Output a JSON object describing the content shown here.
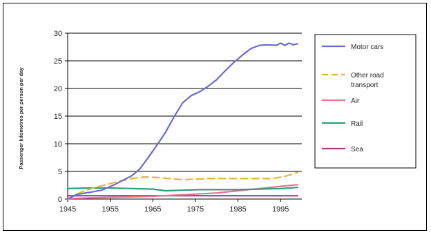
{
  "chart_data": {
    "type": "line",
    "title": "",
    "xlabel": "",
    "ylabel": "Passenger kilometres per person per day",
    "xlim": [
      1945,
      2000
    ],
    "ylim": [
      0,
      30
    ],
    "x_ticks": [
      "1945",
      "1955",
      "1965",
      "1975",
      "1985",
      "1995"
    ],
    "y_ticks": [
      "0",
      "5",
      "10",
      "15",
      "20",
      "25",
      "30"
    ],
    "grid": "horizontal",
    "legend_position": "right",
    "series": [
      {
        "name": "Motor cars",
        "color": "#6b6bc8",
        "dash": "solid",
        "points": [
          [
            1945,
            0.0
          ],
          [
            1947,
            0.8
          ],
          [
            1950,
            1.2
          ],
          [
            1953,
            1.6
          ],
          [
            1956,
            2.6
          ],
          [
            1958,
            3.4
          ],
          [
            1960,
            4.2
          ],
          [
            1962,
            5.5
          ],
          [
            1964,
            7.6
          ],
          [
            1966,
            9.8
          ],
          [
            1968,
            12.1
          ],
          [
            1970,
            14.9
          ],
          [
            1972,
            17.4
          ],
          [
            1974,
            18.7
          ],
          [
            1976,
            19.4
          ],
          [
            1978,
            20.4
          ],
          [
            1980,
            21.6
          ],
          [
            1982,
            23.2
          ],
          [
            1984,
            24.7
          ],
          [
            1986,
            26.0
          ],
          [
            1988,
            27.2
          ],
          [
            1990,
            27.8
          ],
          [
            1992,
            27.9
          ],
          [
            1994,
            27.8
          ],
          [
            1995,
            28.2
          ],
          [
            1996,
            27.8
          ],
          [
            1997,
            28.2
          ],
          [
            1998,
            27.9
          ],
          [
            1999,
            28.1
          ]
        ]
      },
      {
        "name": "Other road transport",
        "color": "#e6b43c",
        "dash": "dashed",
        "points": [
          [
            1945,
            0.0
          ],
          [
            1948,
            1.2
          ],
          [
            1951,
            2.0
          ],
          [
            1954,
            2.6
          ],
          [
            1957,
            3.2
          ],
          [
            1960,
            3.7
          ],
          [
            1963,
            4.0
          ],
          [
            1966,
            3.9
          ],
          [
            1969,
            3.7
          ],
          [
            1972,
            3.5
          ],
          [
            1975,
            3.6
          ],
          [
            1978,
            3.7
          ],
          [
            1981,
            3.7
          ],
          [
            1984,
            3.7
          ],
          [
            1987,
            3.7
          ],
          [
            1990,
            3.7
          ],
          [
            1993,
            3.7
          ],
          [
            1996,
            4.1
          ],
          [
            1999,
            4.8
          ]
        ]
      },
      {
        "name": "Air",
        "color": "#e8738f",
        "dash": "solid",
        "points": [
          [
            1945,
            0.1
          ],
          [
            1950,
            0.2
          ],
          [
            1955,
            0.3
          ],
          [
            1960,
            0.4
          ],
          [
            1965,
            0.5
          ],
          [
            1970,
            0.7
          ],
          [
            1975,
            0.9
          ],
          [
            1980,
            1.1
          ],
          [
            1985,
            1.5
          ],
          [
            1990,
            1.9
          ],
          [
            1995,
            2.3
          ],
          [
            1999,
            2.6
          ]
        ]
      },
      {
        "name": "Rail",
        "color": "#2e9e7a",
        "dash": "solid",
        "points": [
          [
            1945,
            1.9
          ],
          [
            1950,
            2.0
          ],
          [
            1955,
            2.0
          ],
          [
            1960,
            1.9
          ],
          [
            1965,
            1.8
          ],
          [
            1968,
            1.5
          ],
          [
            1972,
            1.6
          ],
          [
            1976,
            1.7
          ],
          [
            1980,
            1.7
          ],
          [
            1985,
            1.7
          ],
          [
            1990,
            1.8
          ],
          [
            1995,
            1.9
          ],
          [
            1999,
            2.1
          ]
        ]
      },
      {
        "name": "Sea",
        "color": "#a03d8a",
        "dash": "solid",
        "points": [
          [
            1945,
            0.6
          ],
          [
            1950,
            0.6
          ],
          [
            1955,
            0.6
          ],
          [
            1960,
            0.6
          ],
          [
            1965,
            0.6
          ],
          [
            1970,
            0.6
          ],
          [
            1975,
            0.6
          ],
          [
            1980,
            0.6
          ],
          [
            1985,
            0.6
          ],
          [
            1990,
            0.6
          ],
          [
            1995,
            0.6
          ],
          [
            1999,
            0.6
          ]
        ]
      }
    ],
    "legend_items": [
      {
        "label_lines": [
          "Motor cars"
        ],
        "series": 0
      },
      {
        "label_lines": [
          "Other road",
          "transport"
        ],
        "series": 1
      },
      {
        "label_lines": [
          "Air"
        ],
        "series": 2
      },
      {
        "label_lines": [
          "Rail"
        ],
        "series": 3
      },
      {
        "label_lines": [
          "Sea"
        ],
        "series": 4
      }
    ]
  }
}
